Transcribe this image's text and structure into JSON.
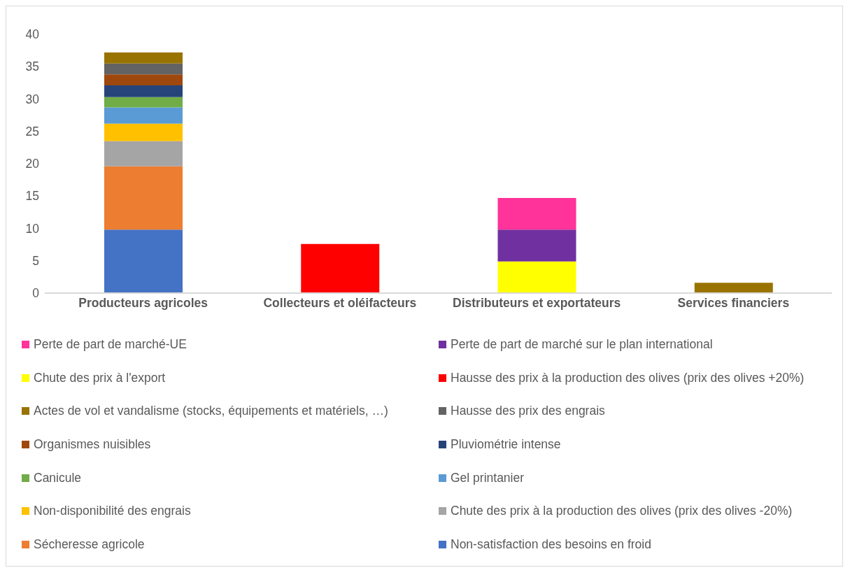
{
  "chart_data": {
    "type": "bar",
    "stacked": true,
    "categories": [
      "Producteurs agricoles",
      "Collecteurs et oléifacteurs",
      "Distributeurs et exportateurs",
      "Services financiers"
    ],
    "series": [
      {
        "name": "Non-satisfaction des besoins en froid",
        "color": "#4472c4",
        "values": [
          9.8,
          null,
          null,
          null
        ]
      },
      {
        "name": "Sécheresse agricole",
        "color": "#ed7d31",
        "values": [
          9.8,
          null,
          null,
          null
        ]
      },
      {
        "name": "Chute des prix à la production des olives (prix des olives -20%)",
        "color": "#a5a5a5",
        "values": [
          3.9,
          null,
          null,
          null
        ]
      },
      {
        "name": "Non-disponibilité des engrais",
        "color": "#ffc000",
        "values": [
          2.7,
          null,
          null,
          null
        ]
      },
      {
        "name": "Gel printanier",
        "color": "#5b9bd5",
        "values": [
          2.5,
          null,
          null,
          null
        ]
      },
      {
        "name": "Canicule",
        "color": "#70ad47",
        "values": [
          1.6,
          null,
          null,
          null
        ]
      },
      {
        "name": "Pluviométrie intense",
        "color": "#264478",
        "values": [
          1.8,
          null,
          null,
          null
        ]
      },
      {
        "name": "Organismes nuisibles",
        "color": "#9e480e",
        "values": [
          1.7,
          null,
          null,
          null
        ]
      },
      {
        "name": "Hausse des prix des engrais",
        "color": "#636363",
        "values": [
          1.7,
          null,
          null,
          null
        ]
      },
      {
        "name": "Actes de vol et vandalisme (stocks, équipements et matériels, …)",
        "color": "#997300",
        "values": [
          1.7,
          null,
          null,
          1.6
        ]
      },
      {
        "name": "Hausse des prix à la production des olives (prix des olives +20%)",
        "color": "#ff0000",
        "values": [
          null,
          7.6,
          null,
          null
        ]
      },
      {
        "name": "Chute des prix à l'export",
        "color": "#ffff00",
        "values": [
          null,
          null,
          4.9,
          null
        ]
      },
      {
        "name": "Perte de part de marché sur le plan international",
        "color": "#7030a0",
        "values": [
          null,
          null,
          4.9,
          null
        ]
      },
      {
        "name": "Perte de part de marché-UE",
        "color": "#ff3399",
        "values": [
          null,
          null,
          4.9,
          null
        ]
      }
    ],
    "ylim": [
      0,
      40
    ],
    "yticks": [
      0,
      5,
      10,
      15,
      20,
      25,
      30,
      35,
      40
    ],
    "grid": false,
    "legend": "bottom"
  }
}
